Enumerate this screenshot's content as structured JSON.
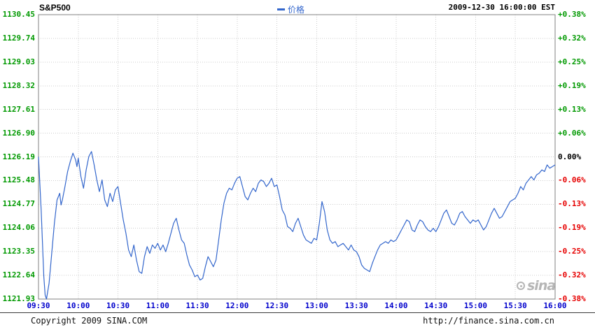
{
  "header": {
    "symbol": "S&P500",
    "legend_label": "价格",
    "timestamp": "2009-12-30 16:00:00 EST"
  },
  "watermark": "sina",
  "footer": {
    "copyright": "Copyright 2009 SINA.COM",
    "url": "http://finance.sina.com.cn"
  },
  "colors": {
    "axis_price_green": "#009900",
    "pct_up": "#009900",
    "pct_down": "#e60000",
    "pct_zero": "#000000",
    "time_label_blue": "#0000cc",
    "price_line_blue": "#3366cc",
    "grid_gray": "#cccccc",
    "border_gray": "#808080"
  },
  "chart_data": {
    "type": "line",
    "title": "S&P500 intraday price",
    "xlabel": "",
    "ylabel": "",
    "grid": true,
    "legend_position": "top",
    "legend": [
      "价格"
    ],
    "prev_close": 1126.19,
    "ylim": [
      1121.93,
      1130.45
    ],
    "xlim_minutes": [
      0,
      390
    ],
    "x_ticks": [
      "09:30",
      "10:00",
      "10:30",
      "11:00",
      "11:30",
      "12:00",
      "12:30",
      "13:00",
      "13:30",
      "14:00",
      "14:30",
      "15:00",
      "15:30",
      "16:00"
    ],
    "x_tick_minutes": [
      0,
      30,
      60,
      90,
      120,
      150,
      180,
      210,
      240,
      270,
      300,
      330,
      360,
      390
    ],
    "y_left_ticks": [
      1130.45,
      1129.74,
      1129.03,
      1128.32,
      1127.61,
      1126.9,
      1126.19,
      1125.48,
      1124.77,
      1124.06,
      1123.35,
      1122.64,
      1121.93
    ],
    "y_right_ticks": [
      "+0.38%",
      "+0.32%",
      "+0.25%",
      "+0.19%",
      "+0.13%",
      "+0.06%",
      "0.00%",
      "-0.06%",
      "-0.13%",
      "-0.19%",
      "-0.25%",
      "-0.32%",
      "-0.38%"
    ],
    "series": [
      {
        "name": "价格",
        "points": [
          [
            0,
            1126.19
          ],
          [
            2,
            1124.6
          ],
          [
            4,
            1122.6
          ],
          [
            5,
            1122.05
          ],
          [
            6,
            1121.93
          ],
          [
            8,
            1122.4
          ],
          [
            10,
            1123.3
          ],
          [
            12,
            1124.2
          ],
          [
            14,
            1124.9
          ],
          [
            16,
            1125.1
          ],
          [
            17,
            1124.75
          ],
          [
            18,
            1124.9
          ],
          [
            20,
            1125.3
          ],
          [
            22,
            1125.75
          ],
          [
            24,
            1126.05
          ],
          [
            26,
            1126.3
          ],
          [
            28,
            1126.1
          ],
          [
            29,
            1125.9
          ],
          [
            30,
            1126.15
          ],
          [
            32,
            1125.6
          ],
          [
            34,
            1125.25
          ],
          [
            36,
            1125.8
          ],
          [
            38,
            1126.2
          ],
          [
            40,
            1126.35
          ],
          [
            42,
            1125.95
          ],
          [
            44,
            1125.5
          ],
          [
            46,
            1125.15
          ],
          [
            48,
            1125.5
          ],
          [
            50,
            1124.9
          ],
          [
            52,
            1124.7
          ],
          [
            54,
            1125.1
          ],
          [
            56,
            1124.85
          ],
          [
            58,
            1125.2
          ],
          [
            60,
            1125.3
          ],
          [
            62,
            1124.8
          ],
          [
            64,
            1124.3
          ],
          [
            66,
            1123.9
          ],
          [
            68,
            1123.4
          ],
          [
            70,
            1123.2
          ],
          [
            72,
            1123.55
          ],
          [
            74,
            1123.1
          ],
          [
            76,
            1122.75
          ],
          [
            78,
            1122.7
          ],
          [
            80,
            1123.2
          ],
          [
            82,
            1123.5
          ],
          [
            84,
            1123.3
          ],
          [
            86,
            1123.55
          ],
          [
            88,
            1123.45
          ],
          [
            90,
            1123.6
          ],
          [
            92,
            1123.4
          ],
          [
            94,
            1123.55
          ],
          [
            96,
            1123.35
          ],
          [
            98,
            1123.6
          ],
          [
            100,
            1123.9
          ],
          [
            102,
            1124.2
          ],
          [
            104,
            1124.35
          ],
          [
            106,
            1124.0
          ],
          [
            108,
            1123.7
          ],
          [
            110,
            1123.6
          ],
          [
            112,
            1123.25
          ],
          [
            114,
            1122.95
          ],
          [
            116,
            1122.8
          ],
          [
            118,
            1122.6
          ],
          [
            120,
            1122.65
          ],
          [
            122,
            1122.5
          ],
          [
            124,
            1122.55
          ],
          [
            126,
            1122.9
          ],
          [
            128,
            1123.2
          ],
          [
            130,
            1123.05
          ],
          [
            132,
            1122.9
          ],
          [
            134,
            1123.1
          ],
          [
            136,
            1123.7
          ],
          [
            138,
            1124.3
          ],
          [
            140,
            1124.8
          ],
          [
            142,
            1125.1
          ],
          [
            144,
            1125.25
          ],
          [
            146,
            1125.2
          ],
          [
            148,
            1125.4
          ],
          [
            150,
            1125.55
          ],
          [
            152,
            1125.6
          ],
          [
            154,
            1125.3
          ],
          [
            156,
            1125.0
          ],
          [
            158,
            1124.9
          ],
          [
            160,
            1125.1
          ],
          [
            162,
            1125.25
          ],
          [
            164,
            1125.15
          ],
          [
            166,
            1125.4
          ],
          [
            168,
            1125.5
          ],
          [
            170,
            1125.45
          ],
          [
            172,
            1125.3
          ],
          [
            174,
            1125.4
          ],
          [
            176,
            1125.55
          ],
          [
            178,
            1125.3
          ],
          [
            180,
            1125.35
          ],
          [
            182,
            1125.0
          ],
          [
            184,
            1124.6
          ],
          [
            186,
            1124.45
          ],
          [
            188,
            1124.1
          ],
          [
            190,
            1124.05
          ],
          [
            192,
            1123.95
          ],
          [
            194,
            1124.2
          ],
          [
            196,
            1124.35
          ],
          [
            198,
            1124.1
          ],
          [
            200,
            1123.85
          ],
          [
            202,
            1123.7
          ],
          [
            204,
            1123.65
          ],
          [
            206,
            1123.6
          ],
          [
            208,
            1123.75
          ],
          [
            210,
            1123.7
          ],
          [
            212,
            1124.2
          ],
          [
            214,
            1124.85
          ],
          [
            216,
            1124.55
          ],
          [
            218,
            1124.0
          ],
          [
            220,
            1123.7
          ],
          [
            222,
            1123.6
          ],
          [
            224,
            1123.65
          ],
          [
            226,
            1123.5
          ],
          [
            228,
            1123.55
          ],
          [
            230,
            1123.6
          ],
          [
            232,
            1123.5
          ],
          [
            234,
            1123.4
          ],
          [
            236,
            1123.55
          ],
          [
            238,
            1123.4
          ],
          [
            240,
            1123.35
          ],
          [
            242,
            1123.2
          ],
          [
            244,
            1122.95
          ],
          [
            246,
            1122.85
          ],
          [
            248,
            1122.8
          ],
          [
            250,
            1122.75
          ],
          [
            252,
            1123.0
          ],
          [
            254,
            1123.2
          ],
          [
            256,
            1123.4
          ],
          [
            258,
            1123.55
          ],
          [
            260,
            1123.6
          ],
          [
            262,
            1123.65
          ],
          [
            264,
            1123.6
          ],
          [
            266,
            1123.7
          ],
          [
            268,
            1123.65
          ],
          [
            270,
            1123.7
          ],
          [
            272,
            1123.85
          ],
          [
            274,
            1124.0
          ],
          [
            276,
            1124.15
          ],
          [
            278,
            1124.3
          ],
          [
            280,
            1124.25
          ],
          [
            282,
            1124.0
          ],
          [
            284,
            1123.95
          ],
          [
            286,
            1124.15
          ],
          [
            288,
            1124.3
          ],
          [
            290,
            1124.25
          ],
          [
            292,
            1124.1
          ],
          [
            294,
            1124.0
          ],
          [
            296,
            1123.95
          ],
          [
            298,
            1124.05
          ],
          [
            300,
            1123.95
          ],
          [
            302,
            1124.1
          ],
          [
            304,
            1124.3
          ],
          [
            306,
            1124.5
          ],
          [
            308,
            1124.6
          ],
          [
            310,
            1124.4
          ],
          [
            312,
            1124.2
          ],
          [
            314,
            1124.15
          ],
          [
            316,
            1124.3
          ],
          [
            318,
            1124.5
          ],
          [
            320,
            1124.55
          ],
          [
            322,
            1124.4
          ],
          [
            324,
            1124.3
          ],
          [
            326,
            1124.2
          ],
          [
            328,
            1124.3
          ],
          [
            330,
            1124.25
          ],
          [
            332,
            1124.3
          ],
          [
            334,
            1124.15
          ],
          [
            336,
            1124.0
          ],
          [
            338,
            1124.1
          ],
          [
            340,
            1124.3
          ],
          [
            342,
            1124.5
          ],
          [
            344,
            1124.65
          ],
          [
            346,
            1124.5
          ],
          [
            348,
            1124.35
          ],
          [
            350,
            1124.4
          ],
          [
            352,
            1124.55
          ],
          [
            354,
            1124.7
          ],
          [
            356,
            1124.85
          ],
          [
            358,
            1124.9
          ],
          [
            360,
            1124.95
          ],
          [
            362,
            1125.1
          ],
          [
            364,
            1125.3
          ],
          [
            366,
            1125.2
          ],
          [
            368,
            1125.4
          ],
          [
            370,
            1125.5
          ],
          [
            372,
            1125.6
          ],
          [
            374,
            1125.5
          ],
          [
            376,
            1125.65
          ],
          [
            378,
            1125.7
          ],
          [
            380,
            1125.8
          ],
          [
            382,
            1125.75
          ],
          [
            384,
            1125.95
          ],
          [
            386,
            1125.85
          ],
          [
            388,
            1125.9
          ],
          [
            390,
            1125.95
          ]
        ]
      }
    ]
  }
}
